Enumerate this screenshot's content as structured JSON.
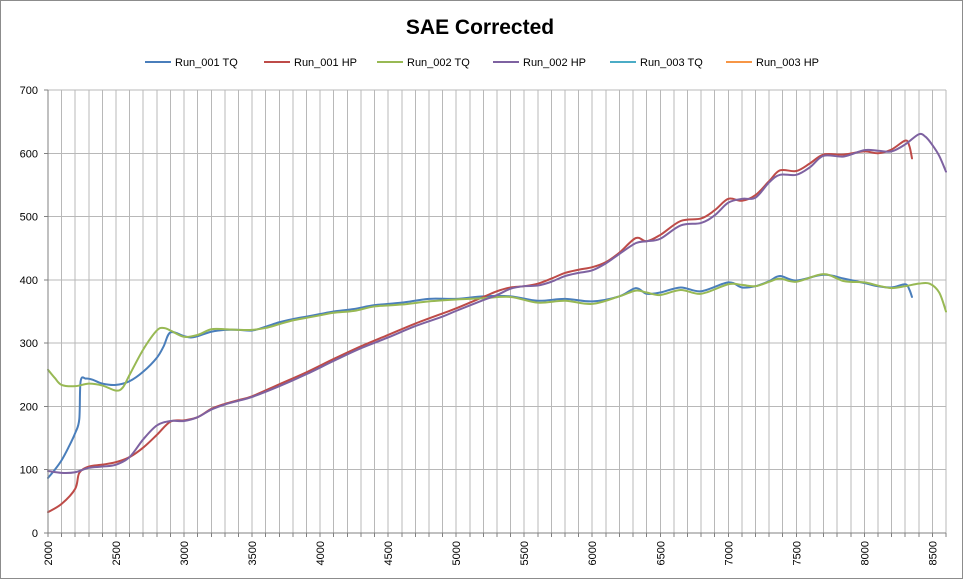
{
  "chart_data": {
    "type": "line",
    "title": "SAE Corrected",
    "xlabel": "",
    "ylabel": "",
    "xlim": [
      2000,
      8600
    ],
    "ylim": [
      0,
      700
    ],
    "x_ticks": [
      2000,
      2500,
      3000,
      3500,
      4000,
      4500,
      5000,
      5500,
      6000,
      6500,
      7000,
      7500,
      8000,
      8500
    ],
    "y_ticks": [
      0,
      100,
      200,
      300,
      400,
      500,
      600,
      700
    ],
    "grid": true,
    "legend_position": "top",
    "series": [
      {
        "name": "Run_001 TQ",
        "color": "#4a7ebb",
        "points": [
          [
            2000,
            87
          ],
          [
            2050,
            100
          ],
          [
            2100,
            115
          ],
          [
            2150,
            135
          ],
          [
            2200,
            158
          ],
          [
            2230,
            180
          ],
          [
            2240,
            240
          ],
          [
            2280,
            244
          ],
          [
            2330,
            242
          ],
          [
            2400,
            236
          ],
          [
            2500,
            234
          ],
          [
            2600,
            240
          ],
          [
            2700,
            255
          ],
          [
            2800,
            277
          ],
          [
            2850,
            295
          ],
          [
            2900,
            317
          ],
          [
            3000,
            311
          ],
          [
            3050,
            309
          ],
          [
            3100,
            311
          ],
          [
            3200,
            318
          ],
          [
            3300,
            321
          ],
          [
            3400,
            321
          ],
          [
            3500,
            320
          ],
          [
            3600,
            326
          ],
          [
            3700,
            333
          ],
          [
            3800,
            338
          ],
          [
            3900,
            342
          ],
          [
            4000,
            346
          ],
          [
            4100,
            350
          ],
          [
            4250,
            354
          ],
          [
            4400,
            360
          ],
          [
            4600,
            364
          ],
          [
            4800,
            370
          ],
          [
            5000,
            370
          ],
          [
            5200,
            374
          ],
          [
            5400,
            374
          ],
          [
            5600,
            367
          ],
          [
            5800,
            370
          ],
          [
            6000,
            366
          ],
          [
            6200,
            374
          ],
          [
            6320,
            387
          ],
          [
            6400,
            378
          ],
          [
            6500,
            380
          ],
          [
            6650,
            388
          ],
          [
            6800,
            382
          ],
          [
            7000,
            396
          ],
          [
            7100,
            388
          ],
          [
            7200,
            390
          ],
          [
            7300,
            398
          ],
          [
            7380,
            406
          ],
          [
            7500,
            399
          ],
          [
            7700,
            408
          ],
          [
            7850,
            402
          ],
          [
            8000,
            395
          ],
          [
            8100,
            390
          ],
          [
            8200,
            388
          ],
          [
            8300,
            393
          ],
          [
            8330,
            385
          ],
          [
            8350,
            373
          ]
        ]
      },
      {
        "name": "Run_001 HP",
        "color": "#be4b48",
        "points": [
          [
            2000,
            33
          ],
          [
            2100,
            46
          ],
          [
            2200,
            70
          ],
          [
            2230,
            95
          ],
          [
            2300,
            105
          ],
          [
            2400,
            108
          ],
          [
            2500,
            112
          ],
          [
            2600,
            120
          ],
          [
            2700,
            135
          ],
          [
            2800,
            155
          ],
          [
            2900,
            176
          ],
          [
            3000,
            178
          ],
          [
            3100,
            183
          ],
          [
            3200,
            196
          ],
          [
            3300,
            204
          ],
          [
            3400,
            210
          ],
          [
            3500,
            216
          ],
          [
            3700,
            235
          ],
          [
            3900,
            254
          ],
          [
            4100,
            275
          ],
          [
            4300,
            295
          ],
          [
            4500,
            313
          ],
          [
            4700,
            331
          ],
          [
            4900,
            347
          ],
          [
            5000,
            355
          ],
          [
            5200,
            373
          ],
          [
            5300,
            382
          ],
          [
            5400,
            388
          ],
          [
            5500,
            390
          ],
          [
            5600,
            394
          ],
          [
            5700,
            402
          ],
          [
            5800,
            411
          ],
          [
            5900,
            416
          ],
          [
            6000,
            420
          ],
          [
            6100,
            428
          ],
          [
            6200,
            443
          ],
          [
            6320,
            466
          ],
          [
            6400,
            461
          ],
          [
            6500,
            471
          ],
          [
            6650,
            493
          ],
          [
            6800,
            497
          ],
          [
            6900,
            510
          ],
          [
            7000,
            528
          ],
          [
            7100,
            525
          ],
          [
            7200,
            534
          ],
          [
            7300,
            556
          ],
          [
            7380,
            573
          ],
          [
            7500,
            572
          ],
          [
            7600,
            584
          ],
          [
            7700,
            598
          ],
          [
            7850,
            598
          ],
          [
            8000,
            603
          ],
          [
            8100,
            600
          ],
          [
            8200,
            606
          ],
          [
            8300,
            620
          ],
          [
            8330,
            612
          ],
          [
            8350,
            592
          ]
        ]
      },
      {
        "name": "Run_002 TQ",
        "color": "#98b954",
        "points": [
          [
            2000,
            258
          ],
          [
            2050,
            245
          ],
          [
            2100,
            234
          ],
          [
            2200,
            232
          ],
          [
            2300,
            236
          ],
          [
            2400,
            233
          ],
          [
            2500,
            225
          ],
          [
            2550,
            230
          ],
          [
            2600,
            250
          ],
          [
            2700,
            290
          ],
          [
            2800,
            320
          ],
          [
            2850,
            324
          ],
          [
            2900,
            320
          ],
          [
            3000,
            310
          ],
          [
            3100,
            313
          ],
          [
            3200,
            322
          ],
          [
            3300,
            322
          ],
          [
            3400,
            321
          ],
          [
            3500,
            321
          ],
          [
            3600,
            324
          ],
          [
            3700,
            330
          ],
          [
            3800,
            336
          ],
          [
            3900,
            340
          ],
          [
            4000,
            344
          ],
          [
            4100,
            348
          ],
          [
            4250,
            351
          ],
          [
            4400,
            358
          ],
          [
            4600,
            361
          ],
          [
            4800,
            366
          ],
          [
            5000,
            369
          ],
          [
            5200,
            371
          ],
          [
            5400,
            373
          ],
          [
            5600,
            364
          ],
          [
            5800,
            367
          ],
          [
            6000,
            362
          ],
          [
            6200,
            374
          ],
          [
            6320,
            383
          ],
          [
            6400,
            380
          ],
          [
            6500,
            376
          ],
          [
            6650,
            384
          ],
          [
            6800,
            378
          ],
          [
            7000,
            393
          ],
          [
            7100,
            392
          ],
          [
            7200,
            390
          ],
          [
            7300,
            397
          ],
          [
            7380,
            402
          ],
          [
            7500,
            397
          ],
          [
            7700,
            409
          ],
          [
            7850,
            398
          ],
          [
            8000,
            396
          ],
          [
            8100,
            391
          ],
          [
            8200,
            387
          ],
          [
            8300,
            390
          ],
          [
            8400,
            394
          ],
          [
            8480,
            394
          ],
          [
            8550,
            380
          ],
          [
            8600,
            350
          ]
        ]
      },
      {
        "name": "Run_002 HP",
        "color": "#7e62a1",
        "points": [
          [
            2000,
            98
          ],
          [
            2100,
            95
          ],
          [
            2200,
            96
          ],
          [
            2300,
            103
          ],
          [
            2400,
            105
          ],
          [
            2500,
            108
          ],
          [
            2600,
            120
          ],
          [
            2700,
            148
          ],
          [
            2800,
            170
          ],
          [
            2900,
            177
          ],
          [
            3000,
            177
          ],
          [
            3100,
            183
          ],
          [
            3200,
            195
          ],
          [
            3300,
            203
          ],
          [
            3400,
            209
          ],
          [
            3500,
            215
          ],
          [
            3700,
            232
          ],
          [
            3900,
            251
          ],
          [
            4100,
            272
          ],
          [
            4300,
            292
          ],
          [
            4500,
            309
          ],
          [
            4700,
            327
          ],
          [
            4900,
            342
          ],
          [
            5000,
            351
          ],
          [
            5200,
            368
          ],
          [
            5300,
            376
          ],
          [
            5400,
            386
          ],
          [
            5500,
            390
          ],
          [
            5600,
            391
          ],
          [
            5700,
            397
          ],
          [
            5800,
            406
          ],
          [
            5900,
            411
          ],
          [
            6000,
            415
          ],
          [
            6100,
            426
          ],
          [
            6200,
            441
          ],
          [
            6320,
            458
          ],
          [
            6400,
            461
          ],
          [
            6500,
            465
          ],
          [
            6650,
            486
          ],
          [
            6800,
            490
          ],
          [
            6900,
            502
          ],
          [
            7000,
            522
          ],
          [
            7100,
            528
          ],
          [
            7200,
            530
          ],
          [
            7300,
            554
          ],
          [
            7380,
            566
          ],
          [
            7500,
            566
          ],
          [
            7600,
            578
          ],
          [
            7700,
            596
          ],
          [
            7850,
            595
          ],
          [
            8000,
            605
          ],
          [
            8100,
            604
          ],
          [
            8200,
            603
          ],
          [
            8300,
            614
          ],
          [
            8400,
            630
          ],
          [
            8450,
            626
          ],
          [
            8500,
            613
          ],
          [
            8550,
            596
          ],
          [
            8600,
            571
          ]
        ]
      }
    ],
    "legend_only_series": [
      {
        "name": "Run_003 TQ",
        "color": "#4bacc6"
      },
      {
        "name": "Run_003 HP",
        "color": "#f79646"
      }
    ]
  }
}
